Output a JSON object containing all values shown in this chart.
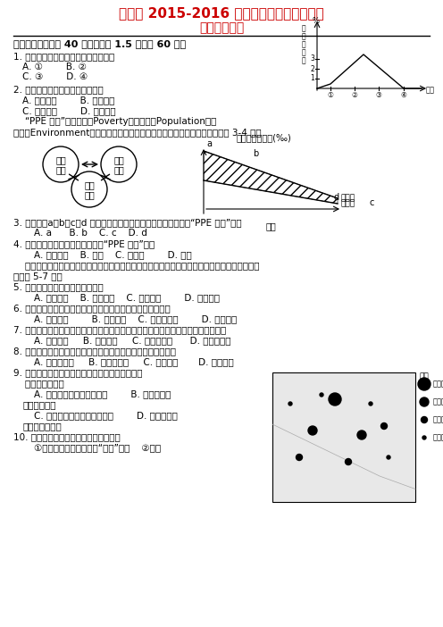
{
  "title1": "市一中 2015-2016 学年度第二学期期末考试",
  "title2": "高一地理试题",
  "section1": "一、选择题：（共 40 小题，每题 1.5 分，共 60 分）",
  "q1": "1. 读右图，该国人口达到顶峰的时期为",
  "q1_opts": [
    "A. ①        B. ②",
    "C. ③        D. ④"
  ],
  "q2": "2. 城市中最广泛的土地利用方式是",
  "q2_opts": [
    "A. 商业用地        B. 居住用地",
    "C. 工业用地        D. 市政用地"
  ],
  "ppe_intro1": "    “PPE 怪圈”是指贫穷（Poverty）、人口（Population）和",
  "ppe_intro2": "环境（Environment）之间形成一种互为因果的关系，如下图所示，读图完成 3-4 题。",
  "q3": "3. 上图中，a、b、c、d 四点代表的人口增长状况中最有可能形成“PPE 怪圈”的是",
  "q3_opts": "    A. a      B. b    C. c    D. d",
  "q4": "4. 目前下列国家中基本不可能出现“PPE 怪圈”的是",
  "q4_opts": "    A. 坦桑尼亚    B. 马里    C. 阿富汗        D. 德国",
  "q_intro2a": "    近几年，山东、河北大力调整农业结构，发展冬季蔬菜大棚生产，为京津地区提供大量蔬菜。据",
  "q_intro2b": "此回答 5-7 题。",
  "q5": "5. 利用塑料大棚种植蔬菜可以改善",
  "q5_opts": "    A. 光照条件    B. 热量条件    C. 降水条件        D. 土壤条件",
  "q6": "6. 影响山东、河北大力发展冬季蔬菜大棚生产的最主要因素是",
  "q6_opts": "    A. 交通便利        B. 市场需求    C. 气候条件好        D. 土壤肥沃",
  "q7": "7. 大棚中生产出来的蔬菜，质量略逊于自然状态下生长的蔬菜，原因是大棚中的环境",
  "q7_opts": "    A. 光照太强     B. 热量不足     C. 日温差较小      D. 年温差较大",
  "q8": "8. 河流对城市的区位影响很大，通常不利于城市建设和发展的是",
  "q8_opts": "    A. 两河汇合处     B. 河流发源地     C. 河流渡口       D. 河口位置",
  "q9_pre": "读图示地区城市等级、服务功能和服务范围的",
  "q9": "9. 关于图示地区城市等级、服务功能和服务范围的",
  "q9b": "    叙述，正确的是",
  "q9_optA": "    A. 常州的城市等级比上海高        B. 无锡的服务",
  "q9_optB": "范围比镇江大",
  "q9_optC": "    C. 宁波的服务功能比杭州齐全        D. 特大城市数",
  "q9_optD": "量比中等城市多",
  "q10": "10. 图示城市化对自然地理环境的影响有",
  "q10_opts": "    ①温室气体排放多，出现“热岛”现象    ②改变",
  "bg_color": "#ffffff",
  "text_color": "#000000",
  "title_color": "#cc0000",
  "legend_items": [
    [
      "特大城市",
      7
    ],
    [
      "大城市",
      5
    ],
    [
      "中等城市",
      3.5
    ],
    [
      "小城市",
      2
    ]
  ]
}
